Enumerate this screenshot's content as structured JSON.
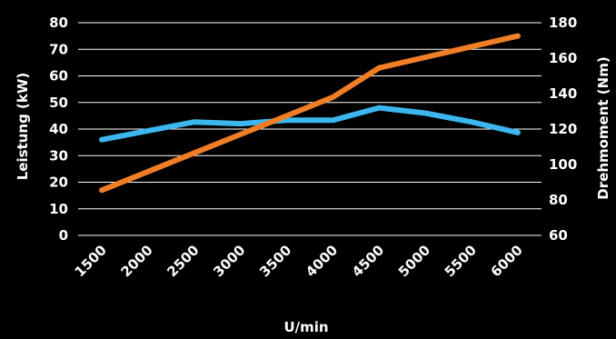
{
  "chart_data": {
    "type": "line",
    "title": "",
    "x": [
      1500,
      2000,
      2500,
      3000,
      3500,
      4000,
      4500,
      5000,
      5500,
      6000
    ],
    "xlabel": "U/min",
    "ylabel_left": "Leistung (kW)",
    "ylabel_right": "Drehmoment (Nm)",
    "ylim_left": [
      0,
      80
    ],
    "ylim_right": [
      60,
      180
    ],
    "yticks_left": [
      0,
      10,
      20,
      30,
      40,
      50,
      60,
      70,
      80
    ],
    "yticks_right": [
      60,
      80,
      100,
      120,
      140,
      160,
      180
    ],
    "grid": true,
    "legend": "none",
    "series": [
      {
        "axis": "left",
        "color": "#f07e26",
        "values": [
          17,
          24,
          31,
          38,
          45,
          52,
          63,
          67,
          71,
          75
        ]
      },
      {
        "axis": "right",
        "color": "#3bb7ed",
        "values": [
          114,
          119,
          124,
          123,
          125,
          125,
          132,
          129,
          124,
          118
        ]
      }
    ]
  }
}
